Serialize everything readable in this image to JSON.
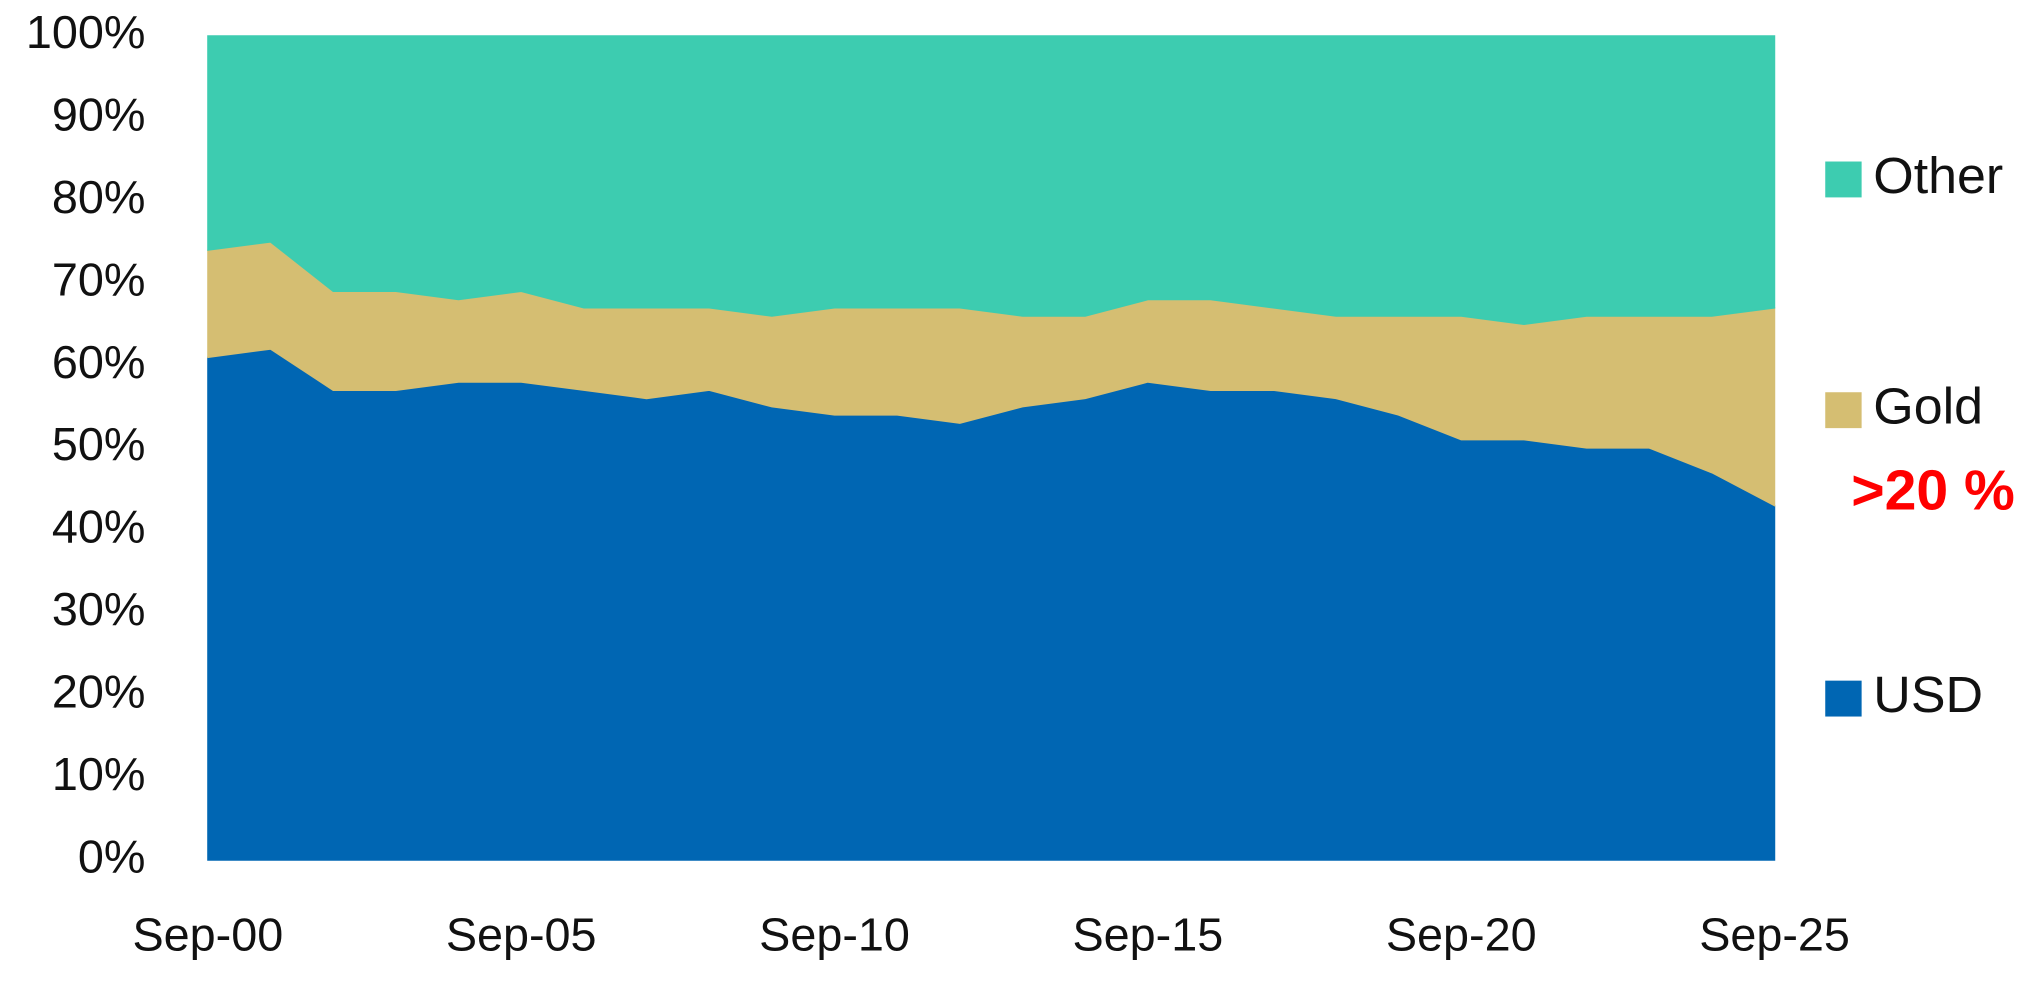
{
  "chart_data": {
    "type": "stacked-area",
    "categories": [
      "Sep-00",
      null,
      null,
      null,
      null,
      "Sep-05",
      null,
      null,
      null,
      null,
      "Sep-10",
      null,
      null,
      null,
      null,
      "Sep-15",
      null,
      null,
      null,
      null,
      "Sep-20",
      null,
      null,
      null,
      null,
      "Sep-25"
    ],
    "series": [
      {
        "name": "USD",
        "color": "#0066b3",
        "values": [
          61,
          62,
          57,
          57,
          58,
          58,
          57,
          56,
          57,
          55,
          54,
          54,
          53,
          55,
          56,
          58,
          57,
          57,
          56,
          54,
          51,
          51,
          50,
          50,
          47,
          43
        ]
      },
      {
        "name": "Gold",
        "color": "#d5be72",
        "values": [
          13,
          13,
          12,
          12,
          10,
          11,
          10,
          11,
          10,
          11,
          13,
          13,
          14,
          11,
          10,
          10,
          11,
          10,
          10,
          12,
          15,
          14,
          16,
          16,
          19,
          24
        ]
      },
      {
        "name": "Other",
        "color": "#3dccb0",
        "values": [
          26,
          25,
          31,
          31,
          32,
          31,
          33,
          33,
          33,
          34,
          33,
          33,
          33,
          34,
          34,
          32,
          32,
          33,
          34,
          34,
          34,
          35,
          34,
          34,
          34,
          33
        ]
      }
    ],
    "ylim": [
      0,
      100
    ],
    "yticks": [
      {
        "value": 0,
        "label": "0%"
      },
      {
        "value": 10,
        "label": "10%"
      },
      {
        "value": 20,
        "label": "20%"
      },
      {
        "value": 30,
        "label": "30%"
      },
      {
        "value": 40,
        "label": "40%"
      },
      {
        "value": 50,
        "label": "50%"
      },
      {
        "value": 60,
        "label": "60%"
      },
      {
        "value": 70,
        "label": "70%"
      },
      {
        "value": 80,
        "label": "80%"
      },
      {
        "value": 90,
        "label": "90%"
      },
      {
        "value": 100,
        "label": "100%"
      }
    ],
    "annotation": ">20 %",
    "legend": "right",
    "grid": false
  }
}
